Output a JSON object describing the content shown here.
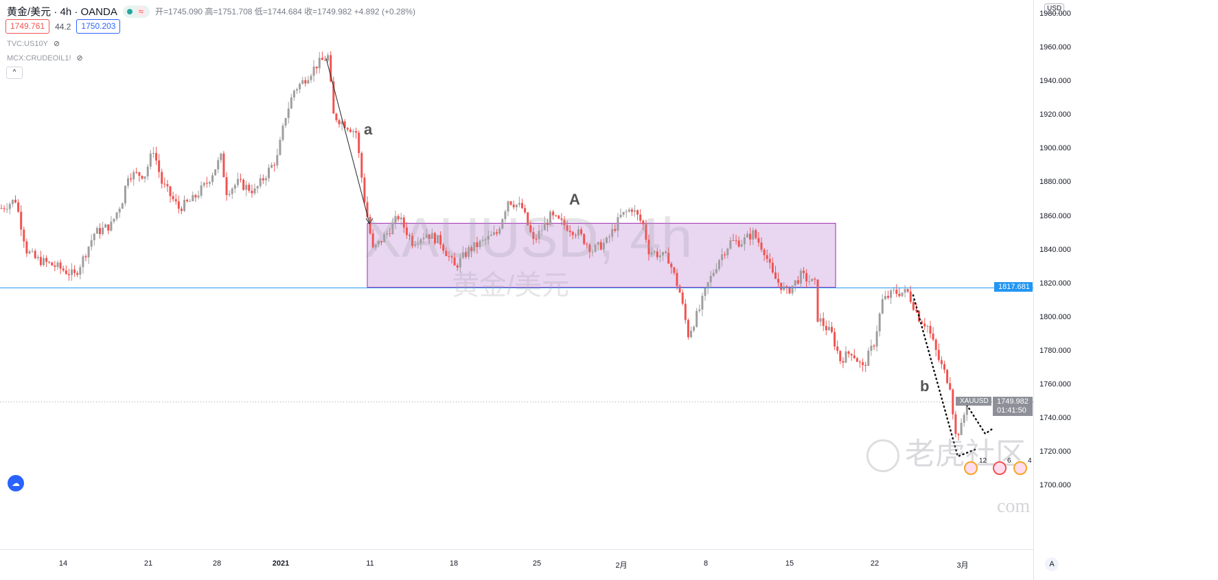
{
  "header": {
    "symbol": "黄金/美元 · 4h · OANDA",
    "ohlc": "开=1745.090 高=1751.708 低=1744.684 收=1749.982 +4.892 (+0.28%)",
    "wave_icon": "≈"
  },
  "quote": {
    "sell": "1749.761",
    "spread": "44.2",
    "buy": "1750.203"
  },
  "indicators": [
    {
      "name": "TVC:US10Y",
      "icon": "eye-off"
    },
    {
      "name": "MCX:CRUDEOIL1!",
      "icon": "eye-off"
    }
  ],
  "collapse_label": "^",
  "watermark": {
    "symbol": "XAUUSD, 4h",
    "name": "黄金/美元",
    "community": "老虎社区",
    "com": "com"
  },
  "annotations": {
    "a": "a",
    "A": "A",
    "b": "b"
  },
  "price_axis": {
    "currency": "USD",
    "ticks": [
      "1980.000",
      "1960.000",
      "1940.000",
      "1920.000",
      "1900.000",
      "1880.000",
      "1860.000",
      "1840.000",
      "1820.000",
      "1800.000",
      "1780.000",
      "1760.000",
      "1740.000",
      "1720.000",
      "1700.000"
    ],
    "auto": "A"
  },
  "time_axis": [
    "14",
    "21",
    "28",
    "2021",
    "11",
    "18",
    "25",
    "2月",
    "8",
    "15",
    "22",
    "3月"
  ],
  "line_tag": "1817.681",
  "last": {
    "symbol": "XAUUSD",
    "price": "1749.982",
    "countdown": "01:41:50"
  },
  "events": {
    "e1": "12",
    "e2": "6",
    "e3": "4"
  },
  "colors": {
    "up": "#9e9e9e",
    "down": "#ef5350",
    "zone": "#e1c8ec",
    "line": "#2196f3"
  },
  "chart_data": {
    "type": "candlestick",
    "ylim": [
      1690,
      1988
    ],
    "zone": [
      1818,
      1856
    ],
    "hline": 1817.681,
    "last_price": 1749.982,
    "path": [
      [
        0,
        1865
      ],
      [
        5,
        1870
      ],
      [
        9,
        1840
      ],
      [
        12,
        1835
      ],
      [
        20,
        1830
      ],
      [
        26,
        1825
      ],
      [
        29,
        1835
      ],
      [
        33,
        1850
      ],
      [
        39,
        1855
      ],
      [
        43,
        1870
      ],
      [
        45,
        1885
      ],
      [
        51,
        1885
      ],
      [
        54,
        1900
      ],
      [
        57,
        1880
      ],
      [
        63,
        1865
      ],
      [
        68,
        1870
      ],
      [
        73,
        1880
      ],
      [
        78,
        1895
      ],
      [
        80,
        1875
      ],
      [
        84,
        1880
      ],
      [
        90,
        1875
      ],
      [
        94,
        1885
      ],
      [
        98,
        1895
      ],
      [
        101,
        1920
      ],
      [
        104,
        1935
      ],
      [
        107,
        1940
      ],
      [
        112,
        1950
      ],
      [
        116,
        1955
      ],
      [
        118,
        1920
      ],
      [
        122,
        1915
      ],
      [
        126,
        1910
      ],
      [
        129,
        1870
      ],
      [
        132,
        1840
      ],
      [
        137,
        1850
      ],
      [
        141,
        1860
      ],
      [
        146,
        1845
      ],
      [
        151,
        1850
      ],
      [
        156,
        1845
      ],
      [
        161,
        1830
      ],
      [
        166,
        1840
      ],
      [
        171,
        1845
      ],
      [
        176,
        1850
      ],
      [
        180,
        1870
      ],
      [
        185,
        1865
      ],
      [
        189,
        1845
      ],
      [
        195,
        1860
      ],
      [
        200,
        1855
      ],
      [
        205,
        1850
      ],
      [
        210,
        1840
      ],
      [
        215,
        1845
      ],
      [
        220,
        1860
      ],
      [
        224,
        1865
      ],
      [
        228,
        1855
      ],
      [
        230,
        1840
      ],
      [
        237,
        1835
      ],
      [
        241,
        1815
      ],
      [
        244,
        1790
      ],
      [
        248,
        1805
      ],
      [
        251,
        1820
      ],
      [
        255,
        1835
      ],
      [
        259,
        1845
      ],
      [
        263,
        1845
      ],
      [
        267,
        1850
      ],
      [
        271,
        1840
      ],
      [
        274,
        1825
      ],
      [
        279,
        1815
      ],
      [
        284,
        1825
      ],
      [
        289,
        1820
      ],
      [
        290,
        1800
      ],
      [
        295,
        1790
      ],
      [
        298,
        1775
      ],
      [
        302,
        1780
      ],
      [
        306,
        1770
      ],
      [
        310,
        1785
      ],
      [
        313,
        1810
      ],
      [
        317,
        1815
      ],
      [
        322,
        1815
      ],
      [
        326,
        1800
      ],
      [
        329,
        1795
      ],
      [
        333,
        1775
      ],
      [
        337,
        1760
      ],
      [
        339,
        1730
      ],
      [
        341,
        1735
      ],
      [
        343,
        1750
      ]
    ]
  }
}
